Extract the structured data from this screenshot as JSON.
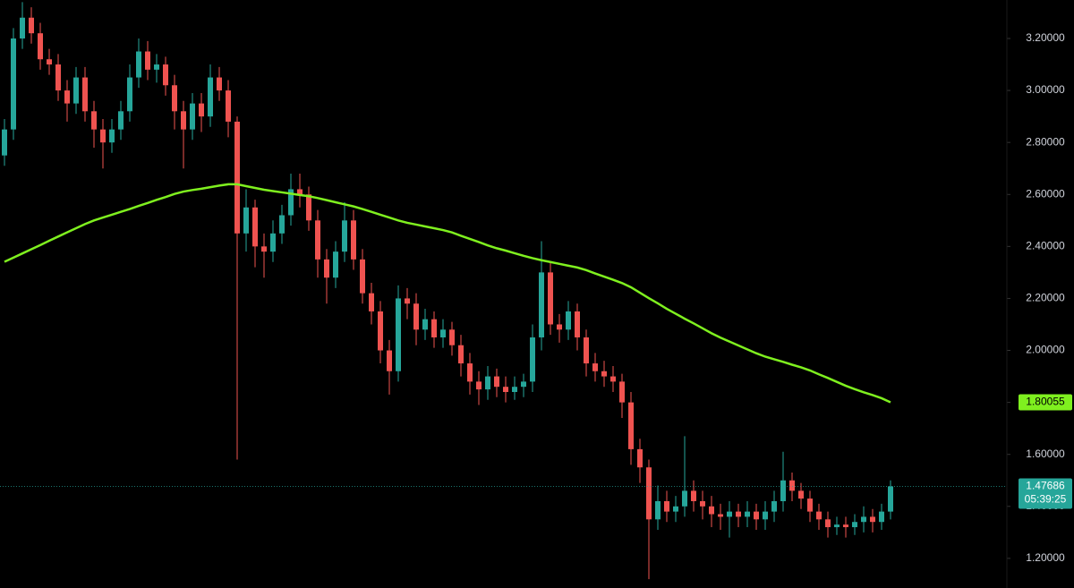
{
  "chart_data": {
    "type": "candlestick",
    "open": [
      2.75,
      2.85,
      3.2,
      3.28,
      3.22,
      3.12,
      3.1,
      3.0,
      2.95,
      3.05,
      2.92,
      2.85,
      2.8,
      2.85,
      2.92,
      3.05,
      3.15,
      3.08,
      3.1,
      3.02,
      2.92,
      2.85,
      2.95,
      2.9,
      3.05,
      3.0,
      2.88,
      2.45,
      2.55,
      2.4,
      2.38,
      2.45,
      2.52,
      2.62,
      2.6,
      2.5,
      2.35,
      2.28,
      2.38,
      2.5,
      2.35,
      2.22,
      2.15,
      2.0,
      1.92,
      2.2,
      2.18,
      2.08,
      2.12,
      2.05,
      2.08,
      2.02,
      1.95,
      1.88,
      1.85,
      1.9,
      1.86,
      1.84,
      1.86,
      1.88,
      2.05,
      2.3,
      2.1,
      2.08,
      2.15,
      2.05,
      1.95,
      1.92,
      1.9,
      1.88,
      1.8,
      1.62,
      1.55,
      1.35,
      1.42,
      1.38,
      1.4,
      1.46,
      1.42,
      1.4,
      1.37,
      1.36,
      1.38,
      1.36,
      1.38,
      1.35,
      1.38,
      1.42,
      1.5,
      1.46,
      1.43,
      1.38,
      1.35,
      1.32,
      1.33,
      1.32,
      1.34,
      1.36,
      1.34,
      1.38
    ],
    "high": [
      2.89,
      3.24,
      3.34,
      3.32,
      3.26,
      3.16,
      3.14,
      3.04,
      3.09,
      3.09,
      2.96,
      2.89,
      2.89,
      2.96,
      3.1,
      3.2,
      3.19,
      3.14,
      3.13,
      3.06,
      2.96,
      2.99,
      2.99,
      3.1,
      3.09,
      3.04,
      2.9,
      2.62,
      2.58,
      2.45,
      2.5,
      2.56,
      2.68,
      2.68,
      2.63,
      2.54,
      2.39,
      2.42,
      2.57,
      2.54,
      2.39,
      2.26,
      2.19,
      2.04,
      2.25,
      2.24,
      2.22,
      2.16,
      2.15,
      2.12,
      2.11,
      2.06,
      1.99,
      1.92,
      1.94,
      1.93,
      1.9,
      1.9,
      1.91,
      2.1,
      2.42,
      2.34,
      2.14,
      2.19,
      2.18,
      2.08,
      1.99,
      1.96,
      1.94,
      1.91,
      1.84,
      1.66,
      1.58,
      1.48,
      1.46,
      1.44,
      1.67,
      1.5,
      1.46,
      1.44,
      1.41,
      1.42,
      1.41,
      1.42,
      1.41,
      1.42,
      1.46,
      1.61,
      1.53,
      1.49,
      1.46,
      1.41,
      1.38,
      1.36,
      1.36,
      1.37,
      1.4,
      1.39,
      1.41,
      1.5
    ],
    "low": [
      2.71,
      2.81,
      3.16,
      3.18,
      3.08,
      3.06,
      2.96,
      2.88,
      2.91,
      2.88,
      2.78,
      2.7,
      2.76,
      2.81,
      2.88,
      3.01,
      3.04,
      3.03,
      2.98,
      2.85,
      2.7,
      2.81,
      2.84,
      2.86,
      2.96,
      2.82,
      1.58,
      2.38,
      2.32,
      2.28,
      2.34,
      2.41,
      2.48,
      2.55,
      2.46,
      2.28,
      2.18,
      2.24,
      2.34,
      2.31,
      2.18,
      2.1,
      1.95,
      1.83,
      1.88,
      2.12,
      2.02,
      2.04,
      2.01,
      2.01,
      1.98,
      1.9,
      1.83,
      1.79,
      1.81,
      1.82,
      1.8,
      1.81,
      1.82,
      1.84,
      2.0,
      2.06,
      2.03,
      2.04,
      2.0,
      1.9,
      1.88,
      1.86,
      1.84,
      1.74,
      1.56,
      1.49,
      1.12,
      1.31,
      1.34,
      1.34,
      1.36,
      1.38,
      1.35,
      1.32,
      1.31,
      1.28,
      1.32,
      1.32,
      1.31,
      1.31,
      1.34,
      1.38,
      1.42,
      1.39,
      1.34,
      1.31,
      1.28,
      1.29,
      1.28,
      1.29,
      1.3,
      1.3,
      1.31,
      1.35
    ],
    "close": [
      2.85,
      3.2,
      3.28,
      3.22,
      3.12,
      3.1,
      3.0,
      2.95,
      3.05,
      2.92,
      2.85,
      2.8,
      2.85,
      2.92,
      3.05,
      3.15,
      3.08,
      3.1,
      3.02,
      2.92,
      2.85,
      2.95,
      2.9,
      3.05,
      3.0,
      2.88,
      2.45,
      2.55,
      2.4,
      2.38,
      2.45,
      2.52,
      2.62,
      2.6,
      2.5,
      2.35,
      2.28,
      2.38,
      2.5,
      2.35,
      2.22,
      2.15,
      2.0,
      1.92,
      2.2,
      2.18,
      2.08,
      2.12,
      2.05,
      2.08,
      2.02,
      1.95,
      1.88,
      1.85,
      1.9,
      1.86,
      1.84,
      1.86,
      1.88,
      2.05,
      2.3,
      2.1,
      2.08,
      2.15,
      2.05,
      1.95,
      1.92,
      1.9,
      1.88,
      1.8,
      1.62,
      1.55,
      1.35,
      1.42,
      1.38,
      1.4,
      1.46,
      1.42,
      1.4,
      1.37,
      1.36,
      1.38,
      1.36,
      1.38,
      1.35,
      1.38,
      1.42,
      1.5,
      1.46,
      1.43,
      1.38,
      1.35,
      1.32,
      1.33,
      1.32,
      1.34,
      1.36,
      1.34,
      1.38,
      1.47686
    ],
    "up_color": "#26a69a",
    "down_color": "#ef5350",
    "moving_average": {
      "color": "#7ff01f",
      "values": [
        2.341,
        2.357,
        2.373,
        2.389,
        2.405,
        2.422,
        2.438,
        2.454,
        2.47,
        2.486,
        2.5,
        2.511,
        2.522,
        2.533,
        2.544,
        2.556,
        2.567,
        2.579,
        2.59,
        2.602,
        2.611,
        2.617,
        2.622,
        2.628,
        2.634,
        2.639,
        2.639,
        2.632,
        2.625,
        2.618,
        2.613,
        2.608,
        2.603,
        2.598,
        2.593,
        2.586,
        2.578,
        2.57,
        2.562,
        2.554,
        2.544,
        2.533,
        2.522,
        2.511,
        2.5,
        2.491,
        2.484,
        2.477,
        2.47,
        2.463,
        2.454,
        2.441,
        2.429,
        2.417,
        2.404,
        2.393,
        2.384,
        2.374,
        2.364,
        2.355,
        2.347,
        2.34,
        2.333,
        2.326,
        2.319,
        2.309,
        2.296,
        2.284,
        2.272,
        2.259,
        2.243,
        2.222,
        2.201,
        2.181,
        2.16,
        2.141,
        2.122,
        2.104,
        2.085,
        2.066,
        2.049,
        2.034,
        2.019,
        2.004,
        1.989,
        1.976,
        1.966,
        1.956,
        1.945,
        1.935,
        1.923,
        1.908,
        1.894,
        1.879,
        1.864,
        1.851,
        1.839,
        1.828,
        1.816,
        1.80055
      ]
    },
    "ma_last": 1.80055,
    "last_price": 1.47686,
    "countdown": "05:39:25",
    "ylim": [
      1.086,
      3.348
    ],
    "yticks": [
      {
        "value": 1.2,
        "label": "1.20000"
      },
      {
        "value": 1.4,
        "label": "1.40000"
      },
      {
        "value": 1.6,
        "label": "1.60000"
      },
      {
        "value": 1.8,
        "label": "1.80000"
      },
      {
        "value": 2.0,
        "label": "2.00000"
      },
      {
        "value": 2.2,
        "label": "2.20000"
      },
      {
        "value": 2.4,
        "label": "2.40000"
      },
      {
        "value": 2.6,
        "label": "2.60000"
      },
      {
        "value": 2.8,
        "label": "2.80000"
      },
      {
        "value": 3.0,
        "label": "3.00000"
      },
      {
        "value": 3.2,
        "label": "3.20000"
      }
    ]
  }
}
